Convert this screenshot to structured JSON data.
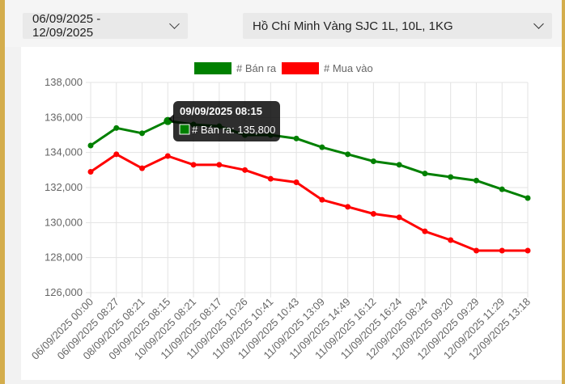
{
  "filters": {
    "date_range": "06/09/2025 - 12/09/2025",
    "gold_type": "Hồ Chí Minh Vàng SJC 1L, 10L, 1KG"
  },
  "chart_data": {
    "type": "line",
    "title": "",
    "xlabel": "",
    "ylabel": "",
    "ylim": [
      126000,
      138000
    ],
    "yticks": [
      "138,000",
      "136,000",
      "134,000",
      "132,000",
      "130,000",
      "128,000",
      "126,000"
    ],
    "grid": true,
    "legend_position": "top",
    "x": [
      "06/09/2025 00:00",
      "06/09/2025 08:27",
      "08/09/2025 08:21",
      "09/09/2025 08:15",
      "10/09/2025 08:21",
      "11/09/2025 08:17",
      "11/09/2025 10:26",
      "11/09/2025 10:41",
      "11/09/2025 10:43",
      "11/09/2025 13:09",
      "11/09/2025 14:49",
      "11/09/2025 16:12",
      "11/09/2025 16:24",
      "12/09/2025 08:24",
      "12/09/2025 09:20",
      "12/09/2025 09:29",
      "12/09/2025 11:29",
      "12/09/2025 13:18"
    ],
    "series": [
      {
        "name": "# Bán ra",
        "color": "#008000",
        "values": [
          134400,
          135400,
          135100,
          135800,
          135600,
          135500,
          135000,
          135000,
          134800,
          134300,
          133900,
          133500,
          133300,
          132800,
          132600,
          132400,
          131900,
          131400
        ]
      },
      {
        "name": "# Mua vào",
        "color": "#ff0000",
        "values": [
          132900,
          133900,
          133100,
          133800,
          133300,
          133300,
          133000,
          132500,
          132300,
          131300,
          130900,
          130500,
          130300,
          129500,
          129000,
          128400,
          128400,
          128400
        ]
      }
    ],
    "tooltip": {
      "title": "09/09/2025 08:15",
      "label": "# Bán ra: 135,800",
      "series_index": 0,
      "point_index": 3
    }
  }
}
